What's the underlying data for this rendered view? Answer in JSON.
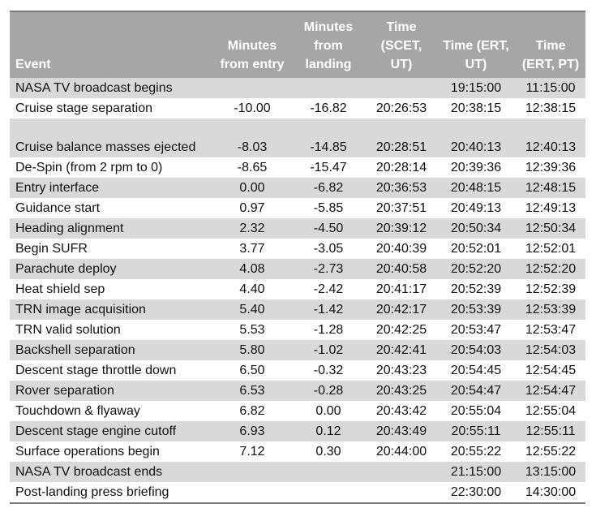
{
  "table": {
    "headers": {
      "event": "Event",
      "min_from_entry": "Minutes from entry",
      "min_from_landing": "Minutes from landing",
      "time_scet": "Time (SCET, UT)",
      "time_ert_ut": "Time (ERT, UT)",
      "time_ert_pt": "Time (ERT, PT)"
    },
    "rows": [
      {
        "event": "NASA TV broadcast begins",
        "entry": "",
        "landing": "",
        "scet": "",
        "ert_ut": "19:15:00",
        "ert_pt": "11:15:00"
      },
      {
        "event": "Cruise stage separation",
        "entry": "-10.00",
        "landing": "-16.82",
        "scet": "20:26:53",
        "ert_ut": "20:38:15",
        "ert_pt": "12:38:15"
      },
      {
        "event": "Cruise balance masses ejected",
        "entry": "-8.03",
        "landing": "-14.85",
        "scet": "20:28:51",
        "ert_ut": "20:40:13",
        "ert_pt": "12:40:13"
      },
      {
        "event": "De-Spin (from 2 rpm to 0)",
        "entry": "-8.65",
        "landing": "-15.47",
        "scet": "20:28:14",
        "ert_ut": "20:39:36",
        "ert_pt": "12:39:36"
      },
      {
        "event": "Entry interface",
        "entry": "0.00",
        "landing": "-6.82",
        "scet": "20:36:53",
        "ert_ut": "20:48:15",
        "ert_pt": "12:48:15"
      },
      {
        "event": "Guidance start",
        "entry": "0.97",
        "landing": "-5.85",
        "scet": "20:37:51",
        "ert_ut": "20:49:13",
        "ert_pt": "12:49:13"
      },
      {
        "event": "Heading alignment",
        "entry": "2.32",
        "landing": "-4.50",
        "scet": "20:39:12",
        "ert_ut": "20:50:34",
        "ert_pt": "12:50:34"
      },
      {
        "event": "Begin SUFR",
        "entry": "3.77",
        "landing": "-3.05",
        "scet": "20:40:39",
        "ert_ut": "20:52:01",
        "ert_pt": "12:52:01"
      },
      {
        "event": "Parachute deploy",
        "entry": "4.08",
        "landing": "-2.73",
        "scet": "20:40:58",
        "ert_ut": "20:52:20",
        "ert_pt": "12:52:20"
      },
      {
        "event": "Heat shield sep",
        "entry": "4.40",
        "landing": "-2.42",
        "scet": "20:41:17",
        "ert_ut": "20:52:39",
        "ert_pt": "12:52:39"
      },
      {
        "event": "TRN image acquisition",
        "entry": "5.40",
        "landing": "-1.42",
        "scet": "20:42:17",
        "ert_ut": "20:53:39",
        "ert_pt": "12:53:39"
      },
      {
        "event": "TRN valid solution",
        "entry": "5.53",
        "landing": "-1.28",
        "scet": "20:42:25",
        "ert_ut": "20:53:47",
        "ert_pt": "12:53:47"
      },
      {
        "event": "Backshell separation",
        "entry": "5.80",
        "landing": "-1.02",
        "scet": "20:42:41",
        "ert_ut": "20:54:03",
        "ert_pt": "12:54:03"
      },
      {
        "event": "Descent stage throttle down",
        "entry": "6.50",
        "landing": "-0.32",
        "scet": "20:43:23",
        "ert_ut": "20:54:45",
        "ert_pt": "12:54:45"
      },
      {
        "event": "Rover separation",
        "entry": "6.53",
        "landing": "-0.28",
        "scet": "20:43:25",
        "ert_ut": "20:54:47",
        "ert_pt": "12:54:47"
      },
      {
        "event": "Touchdown & flyaway",
        "entry": "6.82",
        "landing": "0.00",
        "scet": "20:43:42",
        "ert_ut": "20:55:04",
        "ert_pt": "12:55:04"
      },
      {
        "event": "Descent stage engine cutoff",
        "entry": "6.93",
        "landing": "0.12",
        "scet": "20:43:49",
        "ert_ut": "20:55:11",
        "ert_pt": "12:55:11"
      },
      {
        "event": "Surface operations begin",
        "entry": "7.12",
        "landing": "0.30",
        "scet": "20:44:00",
        "ert_ut": "20:55:22",
        "ert_pt": "12:55:22"
      },
      {
        "event": "NASA TV broadcast ends",
        "entry": "",
        "landing": "",
        "scet": "",
        "ert_ut": "21:15:00",
        "ert_pt": "13:15:00"
      },
      {
        "event": "Post-landing press briefing",
        "entry": "",
        "landing": "",
        "scet": "",
        "ert_ut": "22:30:00",
        "ert_pt": "14:30:00"
      }
    ]
  }
}
